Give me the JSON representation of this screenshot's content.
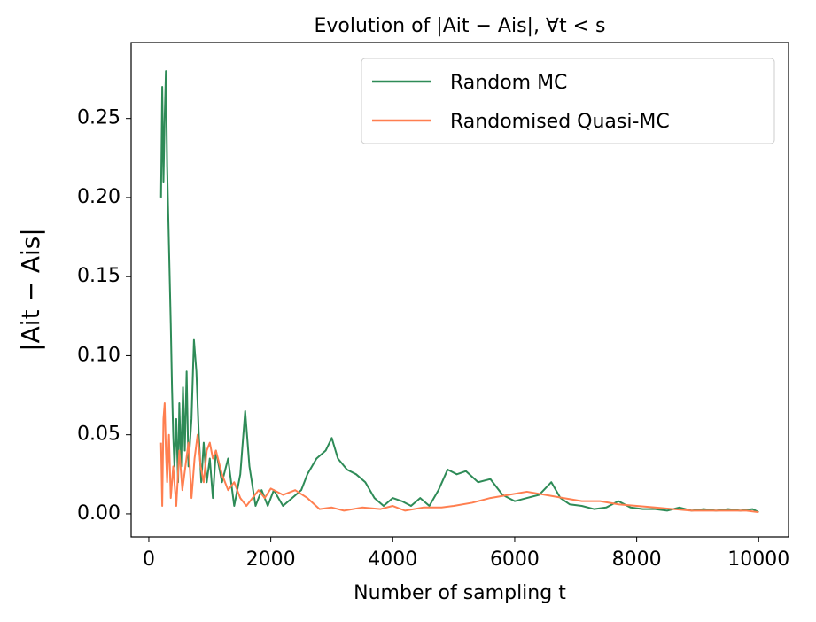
{
  "chart_data": {
    "type": "line",
    "title": "Evolution of |Ait − Ais|, ∀t < s",
    "xlabel": "Number of sampling t",
    "ylabel": "|Ait − Ais|",
    "xlim": [
      -290,
      10490
    ],
    "ylim": [
      -0.0146,
      0.298
    ],
    "xticks": [
      0,
      2000,
      4000,
      6000,
      8000,
      10000
    ],
    "yticks": [
      {
        "value": 0,
        "label": "0.00"
      },
      0.05,
      {
        "value": 0.1,
        "label": "0.10"
      },
      0.15,
      {
        "value": 0.2,
        "label": "0.20"
      },
      0.25
    ],
    "legend": "upper right",
    "series": [
      {
        "name": "Random MC",
        "color": "#2e8b57",
        "x": [
          200,
          220,
          240,
          260,
          280,
          300,
          330,
          360,
          380,
          400,
          420,
          450,
          480,
          500,
          530,
          560,
          590,
          620,
          650,
          700,
          740,
          780,
          820,
          860,
          900,
          950,
          1000,
          1050,
          1100,
          1200,
          1300,
          1400,
          1500,
          1580,
          1650,
          1750,
          1850,
          1950,
          2050,
          2200,
          2350,
          2500,
          2600,
          2750,
          2900,
          3000,
          3100,
          3250,
          3400,
          3550,
          3700,
          3850,
          4000,
          4150,
          4300,
          4450,
          4600,
          4750,
          4900,
          5050,
          5200,
          5400,
          5600,
          5800,
          6000,
          6200,
          6400,
          6600,
          6750,
          6900,
          7100,
          7300,
          7500,
          7700,
          7900,
          8100,
          8300,
          8500,
          8700,
          8900,
          9100,
          9300,
          9500,
          9700,
          9900,
          10000
        ],
        "values": [
          0.2,
          0.27,
          0.21,
          0.25,
          0.28,
          0.22,
          0.17,
          0.12,
          0.08,
          0.05,
          0.03,
          0.06,
          0.02,
          0.07,
          0.03,
          0.08,
          0.04,
          0.09,
          0.03,
          0.06,
          0.11,
          0.09,
          0.05,
          0.02,
          0.045,
          0.02,
          0.035,
          0.01,
          0.04,
          0.02,
          0.035,
          0.005,
          0.025,
          0.065,
          0.03,
          0.005,
          0.015,
          0.005,
          0.015,
          0.005,
          0.01,
          0.015,
          0.025,
          0.035,
          0.04,
          0.048,
          0.035,
          0.028,
          0.025,
          0.02,
          0.01,
          0.005,
          0.01,
          0.008,
          0.005,
          0.01,
          0.005,
          0.015,
          0.028,
          0.025,
          0.027,
          0.02,
          0.022,
          0.012,
          0.008,
          0.01,
          0.012,
          0.02,
          0.01,
          0.006,
          0.005,
          0.003,
          0.004,
          0.008,
          0.004,
          0.003,
          0.003,
          0.002,
          0.004,
          0.002,
          0.003,
          0.002,
          0.003,
          0.002,
          0.003,
          0.001
        ]
      },
      {
        "name": "Randomised Quasi-MC",
        "color": "#ff7f50",
        "x": [
          200,
          220,
          240,
          260,
          280,
          300,
          330,
          360,
          400,
          450,
          500,
          550,
          600,
          650,
          700,
          750,
          800,
          850,
          900,
          950,
          1000,
          1050,
          1100,
          1200,
          1300,
          1400,
          1500,
          1600,
          1700,
          1800,
          1900,
          2000,
          2200,
          2400,
          2600,
          2800,
          3000,
          3200,
          3500,
          3800,
          4000,
          4200,
          4500,
          4800,
          5000,
          5300,
          5600,
          5900,
          6200,
          6500,
          6800,
          7100,
          7400,
          7700,
          8000,
          8300,
          8600,
          8900,
          9200,
          9500,
          9800,
          10000
        ],
        "values": [
          0.045,
          0.005,
          0.06,
          0.07,
          0.04,
          0.02,
          0.05,
          0.01,
          0.03,
          0.005,
          0.04,
          0.015,
          0.03,
          0.045,
          0.01,
          0.035,
          0.05,
          0.03,
          0.02,
          0.04,
          0.045,
          0.035,
          0.04,
          0.025,
          0.015,
          0.02,
          0.01,
          0.005,
          0.01,
          0.015,
          0.01,
          0.016,
          0.012,
          0.015,
          0.01,
          0.003,
          0.004,
          0.002,
          0.004,
          0.003,
          0.005,
          0.002,
          0.004,
          0.004,
          0.005,
          0.007,
          0.01,
          0.012,
          0.014,
          0.012,
          0.01,
          0.008,
          0.008,
          0.006,
          0.005,
          0.004,
          0.003,
          0.002,
          0.002,
          0.002,
          0.002,
          0.001
        ]
      }
    ]
  }
}
